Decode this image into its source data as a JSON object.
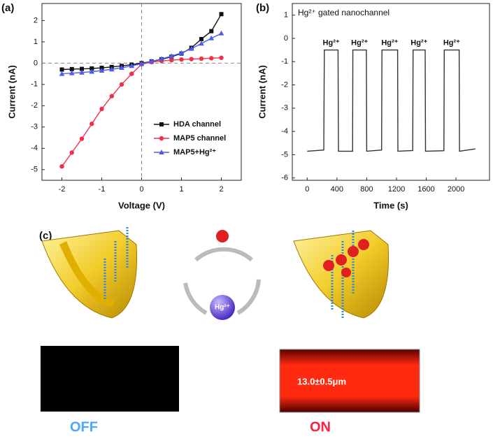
{
  "panel_labels": [
    "(a)",
    "(b)",
    "(c)"
  ],
  "chart_data": [
    {
      "type": "line",
      "x_label": "Voltage (V)",
      "y_label": "Current (nA)",
      "x": [
        -2,
        -1.75,
        -1.5,
        -1.25,
        -1,
        -0.75,
        -0.5,
        -0.25,
        0,
        0.25,
        0.5,
        0.75,
        1,
        1.25,
        1.5,
        1.75,
        2
      ],
      "series": [
        {
          "name": "HDA channel",
          "color": "#111111",
          "marker": "square",
          "values": [
            -0.3,
            -0.28,
            -0.27,
            -0.25,
            -0.22,
            -0.18,
            -0.13,
            -0.07,
            0,
            0.08,
            0.18,
            0.3,
            0.45,
            0.72,
            1.13,
            1.5,
            2.3
          ]
        },
        {
          "name": "MAP5 channel",
          "color": "#f0304a",
          "marker": "circle",
          "values": [
            -4.85,
            -4.2,
            -3.55,
            -2.85,
            -2.15,
            -1.55,
            -1.0,
            -0.5,
            -0.05,
            0.05,
            0.1,
            0.14,
            0.17,
            0.19,
            0.21,
            0.23,
            0.25
          ]
        },
        {
          "name": "MAP5+Hg²⁺",
          "color": "#4a5cf0",
          "marker": "triangle",
          "values": [
            -0.5,
            -0.47,
            -0.44,
            -0.4,
            -0.35,
            -0.29,
            -0.22,
            -0.13,
            -0.03,
            0.08,
            0.2,
            0.33,
            0.48,
            0.68,
            0.92,
            1.17,
            1.4
          ]
        }
      ],
      "xlim": [
        -2.5,
        2.5
      ],
      "ylim": [
        -5.5,
        2.8
      ],
      "xticks": [
        -2,
        -1,
        0,
        1,
        2
      ],
      "yticks": [
        -5,
        -4,
        -3,
        -2,
        -1,
        0,
        1,
        2
      ],
      "zero_lines": true,
      "legend": "lower right"
    },
    {
      "type": "line",
      "title": "Hg²⁺ gated nanochannel",
      "x_label": "Time (s)",
      "y_label": "Current (nA)",
      "x": [
        0,
        223,
        230,
        415,
        420,
        610,
        614,
        795,
        800,
        1000,
        1005,
        1215,
        1219,
        1418,
        1423,
        1585,
        1590,
        1837,
        1842,
        2042,
        2047,
        2260
      ],
      "series": [
        {
          "name": null,
          "color": "#333333",
          "marker": "none",
          "values": [
            -4.85,
            -4.8,
            -0.5,
            -0.5,
            -4.85,
            -4.85,
            -0.5,
            -0.5,
            -4.85,
            -4.8,
            -0.5,
            -0.5,
            -4.85,
            -4.82,
            -0.5,
            -0.5,
            -4.85,
            -4.83,
            -0.5,
            -0.5,
            -4.85,
            -4.75
          ]
        }
      ],
      "annotations": [
        "Hg²⁺",
        "Hg²⁺",
        "Hg²⁺",
        "Hg²⁺",
        "Hg²⁺"
      ],
      "xlim": [
        -200,
        2450
      ],
      "ylim": [
        -6.1,
        1.5
      ],
      "xticks": [
        0,
        400,
        800,
        1200,
        1600,
        2000
      ],
      "yticks": [
        -6,
        -5,
        -4,
        -3,
        -2,
        -1,
        0,
        1
      ],
      "zero_lines": false
    }
  ],
  "diagram": {
    "ion_label": "Hg²⁺",
    "measurement": "13.0±0.5μm",
    "states": [
      "OFF",
      "ON"
    ]
  }
}
